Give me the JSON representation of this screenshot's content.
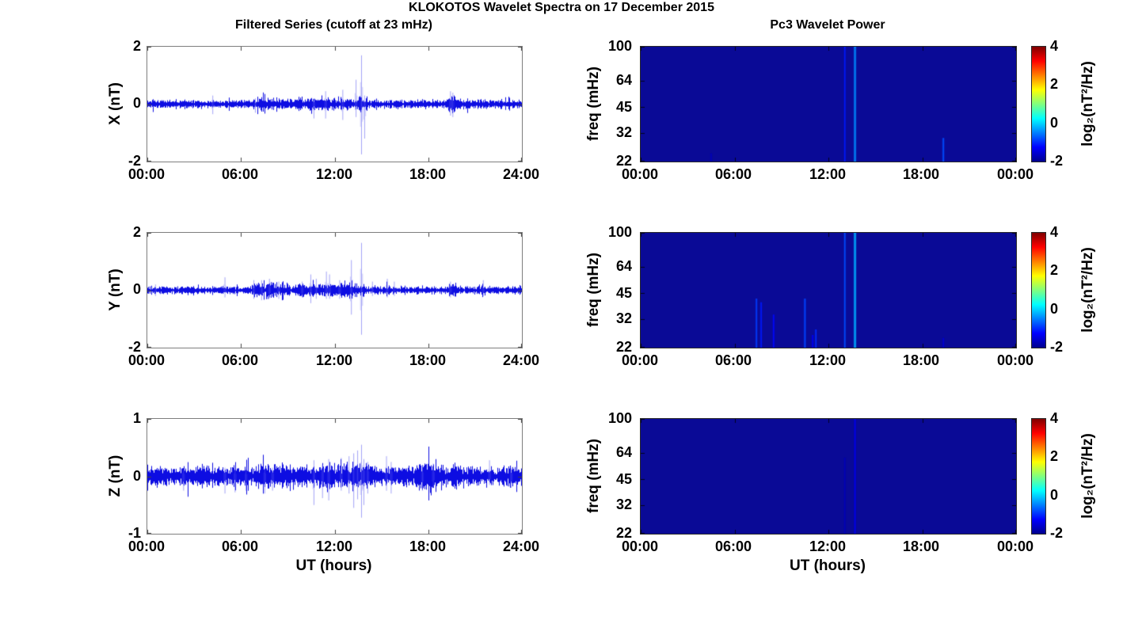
{
  "title": "KLOKOTOS Wavelet Spectra on 17 December 2015",
  "left_column": {
    "subtitle": "Filtered Series (cutoff at 23 mHz)",
    "xlabel": "UT (hours)",
    "xticks": [
      "00:00",
      "06:00",
      "12:00",
      "18:00",
      "24:00"
    ],
    "rows": [
      {
        "ylabel": "X (nT)",
        "yticks": [
          "2",
          "0",
          "-2"
        ]
      },
      {
        "ylabel": "Y (nT)",
        "yticks": [
          "2",
          "0",
          "-2"
        ]
      },
      {
        "ylabel": "Z (nT)",
        "yticks": [
          "1",
          "0",
          "-1"
        ]
      }
    ]
  },
  "right_column": {
    "subtitle": "Pc3 Wavelet Power",
    "xlabel": "UT (hours)",
    "xticks": [
      "00:00",
      "06:00",
      "12:00",
      "18:00",
      "00:00"
    ],
    "ylabel": "freq (mHz)",
    "yticks": [
      "100",
      "64",
      "45",
      "32",
      "22"
    ],
    "colorbar": {
      "ticks": [
        "4",
        "2",
        "0",
        "-2"
      ],
      "label": "log₂(nT²/Hz)"
    }
  },
  "colors": {
    "series_line": "#0000e0",
    "spike_line": "#5a5af0",
    "heat_background": "#0a0a96",
    "axis_box": "#7e7e7e",
    "jet_stops": [
      {
        "p": 0.0,
        "c": "#00008f"
      },
      {
        "p": 0.125,
        "c": "#0000ff"
      },
      {
        "p": 0.375,
        "c": "#00ffff"
      },
      {
        "p": 0.625,
        "c": "#ffff00"
      },
      {
        "p": 0.875,
        "c": "#ff0000"
      },
      {
        "p": 1.0,
        "c": "#800000"
      }
    ]
  },
  "chart_data": [
    {
      "type": "line",
      "name": "X filtered series",
      "ylabel": "X (nT)",
      "xlabel": "",
      "title": "Filtered Series (cutoff at 23 mHz)",
      "xlim_hours": [
        0,
        24
      ],
      "xticks_hours": [
        0,
        6,
        12,
        18,
        24
      ],
      "ylim": [
        -2,
        2
      ],
      "yticks": [
        -2,
        0,
        2
      ],
      "noise_base_amp": 0.09,
      "seed": 11,
      "noise_envelope": [
        {
          "from": 7.0,
          "to": 14.0,
          "amp": 1.3
        },
        {
          "from": 13.4,
          "to": 14.1,
          "amp": 1.5
        },
        {
          "from": 19.2,
          "to": 19.8,
          "amp": 2.1
        }
      ],
      "spikes": [
        [
          4.17,
          0.3,
          -0.35
        ],
        [
          6.9,
          0.2,
          -0.3
        ],
        [
          10.65,
          0.2,
          -0.5
        ],
        [
          11.4,
          0.45,
          -0.5
        ],
        [
          12.5,
          0.5,
          -0.55
        ],
        [
          13.35,
          0.85,
          -0.45
        ],
        [
          13.7,
          1.7,
          -1.75
        ],
        [
          13.9,
          0.3,
          -1.2
        ],
        [
          19.4,
          0.45,
          -0.4
        ],
        [
          19.55,
          0.4,
          -0.45
        ]
      ]
    },
    {
      "type": "line",
      "name": "Y filtered series",
      "ylabel": "Y (nT)",
      "xlabel": "",
      "title": "",
      "xlim_hours": [
        0,
        24
      ],
      "xticks_hours": [
        0,
        6,
        12,
        18,
        24
      ],
      "ylim": [
        -2,
        2
      ],
      "yticks": [
        -2,
        0,
        2
      ],
      "noise_base_amp": 0.08,
      "seed": 22,
      "noise_envelope": [
        {
          "from": 6.9,
          "to": 9.2,
          "amp": 1.9
        },
        {
          "from": 9.5,
          "to": 13.9,
          "amp": 1.7
        },
        {
          "from": 19.3,
          "to": 19.8,
          "amp": 1.5
        },
        {
          "from": 21.3,
          "to": 21.7,
          "amp": 1.4
        }
      ],
      "spikes": [
        [
          0.5,
          0.2,
          -0.2
        ],
        [
          4.95,
          0.45,
          -0.25
        ],
        [
          6.8,
          0.35,
          -0.3
        ],
        [
          7.3,
          0.35,
          -0.35
        ],
        [
          7.8,
          0.4,
          -0.3
        ],
        [
          8.4,
          0.3,
          -0.3
        ],
        [
          9.9,
          0.3,
          -0.25
        ],
        [
          10.45,
          0.55,
          -0.45
        ],
        [
          10.8,
          0.4,
          -0.3
        ],
        [
          11.45,
          0.65,
          -0.3
        ],
        [
          11.65,
          0.55,
          -0.3
        ],
        [
          12.3,
          0.35,
          -0.3
        ],
        [
          13.05,
          1.05,
          -0.85
        ],
        [
          13.7,
          1.65,
          -1.55
        ],
        [
          14.4,
          0.3,
          -0.2
        ],
        [
          15.35,
          0.4,
          -0.25
        ],
        [
          15.8,
          0.3,
          -0.2
        ],
        [
          19.4,
          0.3,
          -0.25
        ],
        [
          21.5,
          0.35,
          -0.2
        ]
      ]
    },
    {
      "type": "line",
      "name": "Z filtered series",
      "ylabel": "Z (nT)",
      "xlabel": "UT (hours)",
      "title": "",
      "xlim_hours": [
        0,
        24
      ],
      "xticks_hours": [
        0,
        6,
        12,
        18,
        24
      ],
      "ylim": [
        -1,
        1
      ],
      "yticks": [
        -1,
        0,
        1
      ],
      "noise_base_amp": 0.1,
      "seed": 33,
      "noise_envelope": [
        {
          "from": 7.0,
          "to": 15.0,
          "amp": 1.25
        },
        {
          "from": 17.2,
          "to": 18.6,
          "amp": 1.7
        },
        {
          "from": 19.5,
          "to": 20.2,
          "amp": 1.3
        }
      ],
      "spikes": [
        [
          2.3,
          0.12,
          -0.25
        ],
        [
          4.95,
          0.15,
          -0.3
        ],
        [
          5.6,
          0.12,
          -0.28
        ],
        [
          6.3,
          0.1,
          -0.25
        ],
        [
          7.5,
          0.15,
          -0.3
        ],
        [
          8.0,
          0.15,
          -0.25
        ],
        [
          10.65,
          0.28,
          -0.5
        ],
        [
          11.2,
          0.2,
          -0.38
        ],
        [
          11.6,
          0.3,
          -0.42
        ],
        [
          12.4,
          0.32,
          -0.25
        ],
        [
          12.9,
          0.35,
          -0.3
        ],
        [
          13.2,
          0.4,
          -0.55
        ],
        [
          13.45,
          0.45,
          -0.4
        ],
        [
          13.7,
          0.55,
          -0.72
        ],
        [
          13.85,
          0.3,
          -0.5
        ],
        [
          14.1,
          0.25,
          -0.3
        ],
        [
          15.3,
          0.35,
          -0.25
        ],
        [
          15.6,
          0.25,
          -0.3
        ],
        [
          17.6,
          0.2,
          -0.25
        ],
        [
          18.3,
          0.22,
          -0.2
        ],
        [
          21.9,
          0.28,
          -0.15
        ],
        [
          23.3,
          0.15,
          -0.2
        ]
      ]
    },
    {
      "type": "heatmap",
      "name": "X Pc3 wavelet power",
      "title": "Pc3 Wavelet Power",
      "ylabel": "freq (mHz)",
      "xlabel": "",
      "xlim_hours": [
        0,
        24
      ],
      "xticks_hours": [
        0,
        6,
        12,
        18,
        24
      ],
      "ylim_mhz": [
        22,
        100
      ],
      "yscale": "log",
      "yticks": [
        100,
        64,
        45,
        32,
        22
      ],
      "clim": [
        -2,
        4
      ],
      "background_value": -2,
      "colormap": "jet",
      "features": [
        {
          "t": 4.5,
          "f_low": 22,
          "f_high": 24.5,
          "value": -1.7,
          "width": 1.4
        },
        {
          "t": 13.05,
          "f_low": 22,
          "f_high": 100,
          "value": -1.1,
          "width": 1.5
        },
        {
          "t": 13.7,
          "f_low": 22,
          "f_high": 100,
          "value": -0.45,
          "width": 2.2
        },
        {
          "t": 19.35,
          "f_low": 22,
          "f_high": 30,
          "value": -0.8,
          "width": 1.8
        }
      ]
    },
    {
      "type": "heatmap",
      "name": "Y Pc3 wavelet power",
      "title": "",
      "ylabel": "freq (mHz)",
      "xlabel": "",
      "xlim_hours": [
        0,
        24
      ],
      "xticks_hours": [
        0,
        6,
        12,
        18,
        24
      ],
      "ylim_mhz": [
        22,
        100
      ],
      "yscale": "log",
      "yticks": [
        100,
        64,
        45,
        32,
        22
      ],
      "clim": [
        -2,
        4
      ],
      "background_value": -2,
      "colormap": "jet",
      "features": [
        {
          "t": 7.4,
          "f_low": 22,
          "f_high": 42,
          "value": -0.9,
          "width": 1.6
        },
        {
          "t": 7.7,
          "f_low": 22,
          "f_high": 40,
          "value": -1.1,
          "width": 1.6
        },
        {
          "t": 8.5,
          "f_low": 22,
          "f_high": 34,
          "value": -1.2,
          "width": 1.6
        },
        {
          "t": 10.5,
          "f_low": 22,
          "f_high": 42,
          "value": -0.85,
          "width": 1.8
        },
        {
          "t": 11.0,
          "f_low": 22,
          "f_high": 26,
          "value": -1.3,
          "width": 1.6
        },
        {
          "t": 11.2,
          "f_low": 22,
          "f_high": 28,
          "value": -1.0,
          "width": 1.6
        },
        {
          "t": 13.05,
          "f_low": 22,
          "f_high": 100,
          "value": -0.8,
          "width": 1.6
        },
        {
          "t": 13.7,
          "f_low": 22,
          "f_high": 100,
          "value": -0.25,
          "width": 2.4
        },
        {
          "t": 19.35,
          "f_low": 22,
          "f_high": 25,
          "value": -1.5,
          "width": 1.4
        }
      ]
    },
    {
      "type": "heatmap",
      "name": "Z Pc3 wavelet power",
      "title": "",
      "ylabel": "freq (mHz)",
      "xlabel": "UT (hours)",
      "xlim_hours": [
        0,
        24
      ],
      "xticks_hours": [
        0,
        6,
        12,
        18,
        24
      ],
      "ylim_mhz": [
        22,
        100
      ],
      "yscale": "log",
      "yticks": [
        100,
        64,
        45,
        32,
        22
      ],
      "clim": [
        -2,
        4
      ],
      "background_value": -2,
      "colormap": "jet",
      "features": [
        {
          "t": 13.05,
          "f_low": 22,
          "f_high": 60,
          "value": -1.7,
          "width": 1.2
        },
        {
          "t": 13.7,
          "f_low": 22,
          "f_high": 100,
          "value": -1.35,
          "width": 1.5
        }
      ]
    }
  ]
}
